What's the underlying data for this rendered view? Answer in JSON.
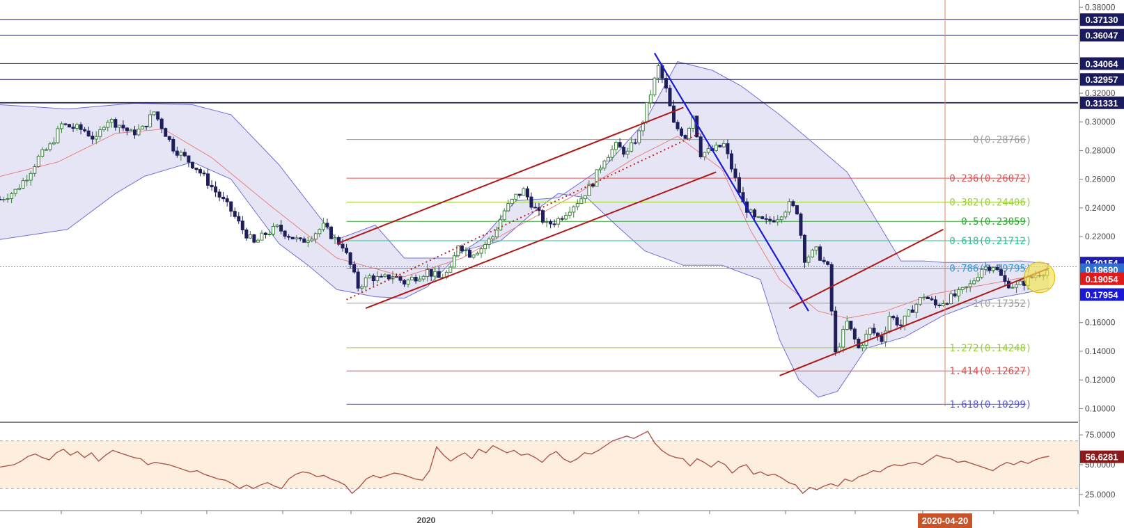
{
  "chart_data": {
    "type": "candlestick",
    "price_axis": {
      "ylim": [
        0.09,
        0.385
      ],
      "ticks": [
        "0.38000",
        "0.32000",
        "0.30000",
        "0.28000",
        "0.26000",
        "0.24000",
        "0.22000",
        "0.16000",
        "0.14000",
        "0.12000",
        "0.10000"
      ]
    },
    "x_axis": {
      "labels": [
        {
          "text": "2020",
          "at": 0.38
        }
      ],
      "cursor_label": "2020-04-20"
    },
    "horizontal_levels": [
      {
        "value": 0.3713,
        "label": "0.37130",
        "color": "#1a1a5e"
      },
      {
        "value": 0.36047,
        "label": "0.36047",
        "color": "#1a1a5e"
      },
      {
        "value": 0.34064,
        "label": "0.34064",
        "color": "#1a1a5e"
      },
      {
        "value": 0.32957,
        "label": "0.32957",
        "color": "#1a1a5e"
      },
      {
        "value": 0.31331,
        "label": "0.31331",
        "color": "#1a1a5e"
      }
    ],
    "price_tags": [
      {
        "value": 0.20154,
        "label": "0.20154",
        "color": "#1f1fb4"
      },
      {
        "value": 0.1969,
        "label": "0.19690",
        "color": "#2f6fd0"
      },
      {
        "value": 0.19054,
        "label": "0.19054",
        "color": "#e01b1b"
      },
      {
        "value": 0.17954,
        "label": "0.17954",
        "color": "#1a1ad6"
      }
    ],
    "fib_levels": [
      {
        "ratio": "0",
        "value": 0.28766,
        "label": "0(0.28766)",
        "color": "#9e9e9e"
      },
      {
        "ratio": "0.236",
        "value": 0.26072,
        "label": "0.236(0.26072)",
        "color": "#e05252"
      },
      {
        "ratio": "0.382",
        "value": 0.24406,
        "label": "0.382(0.24406)",
        "color": "#9bcf3a"
      },
      {
        "ratio": "0.5",
        "value": 0.23059,
        "label": "0.5(0.23059)",
        "color": "#2eaa2e"
      },
      {
        "ratio": "0.618",
        "value": 0.21712,
        "label": "0.618(0.21712)",
        "color": "#2ebf8e"
      },
      {
        "ratio": "0.786",
        "value": 0.19795,
        "label": "0.786(0.19795)",
        "color": "#2e9bd6"
      },
      {
        "ratio": "1",
        "value": 0.17352,
        "label": "1(0.17352)",
        "color": "#9e9e9e"
      },
      {
        "ratio": "1.272",
        "value": 0.14248,
        "label": "1.272(0.14248)",
        "color": "#9bcf3a"
      },
      {
        "ratio": "1.414",
        "value": 0.12627,
        "label": "1.414(0.12627)",
        "color": "#e05252"
      },
      {
        "ratio": "1.618",
        "value": 0.10299,
        "label": "1.618(0.10299)",
        "color": "#5858d6"
      }
    ],
    "rsi": {
      "ylim": [
        15,
        85
      ],
      "ticks": [
        "75.0000",
        "50.0000",
        "25.0000"
      ],
      "last": 56.6281,
      "last_label": "56.6281",
      "band": [
        30,
        70
      ],
      "values": [
        48,
        49,
        50,
        53,
        57,
        59,
        56,
        54,
        60,
        63,
        58,
        61,
        56,
        60,
        53,
        58,
        62,
        60,
        58,
        56,
        55,
        50,
        52,
        51,
        50,
        48,
        46,
        44,
        45,
        42,
        40,
        38,
        37,
        34,
        30,
        33,
        30,
        33,
        35,
        32,
        30,
        38,
        42,
        44,
        43,
        40,
        41,
        38,
        36,
        33,
        26,
        31,
        38,
        41,
        39,
        41,
        43,
        42,
        40,
        38,
        37,
        45,
        65,
        58,
        53,
        57,
        60,
        55,
        63,
        60,
        66,
        63,
        60,
        62,
        58,
        59,
        56,
        52,
        58,
        61,
        55,
        52,
        55,
        60,
        59,
        62,
        66,
        70,
        72,
        74,
        72,
        75,
        78,
        68,
        62,
        58,
        56,
        55,
        49,
        55,
        52,
        48,
        53,
        50,
        43,
        48,
        50,
        42,
        44,
        41,
        42,
        39,
        35,
        33,
        26,
        31,
        29,
        32,
        34,
        32,
        38,
        36,
        40,
        42,
        45,
        44,
        48,
        50,
        49,
        51,
        52,
        50,
        54,
        58,
        56,
        55,
        52,
        53,
        51,
        49,
        47,
        45,
        49,
        52,
        50,
        53,
        51,
        54,
        56,
        57
      ]
    },
    "series": {
      "bb_upper": [
        [
          0,
          0.312
        ],
        [
          35,
          0.309
        ],
        [
          70,
          0.313
        ],
        [
          100,
          0.312
        ],
        [
          120,
          0.305
        ],
        [
          145,
          0.27
        ],
        [
          175,
          0.218
        ],
        [
          195,
          0.228
        ],
        [
          210,
          0.205
        ],
        [
          235,
          0.205
        ],
        [
          250,
          0.218
        ],
        [
          268,
          0.245
        ],
        [
          290,
          0.247
        ],
        [
          315,
          0.27
        ],
        [
          335,
          0.3
        ],
        [
          352,
          0.342
        ],
        [
          370,
          0.336
        ],
        [
          385,
          0.325
        ],
        [
          405,
          0.305
        ],
        [
          420,
          0.288
        ],
        [
          440,
          0.265
        ],
        [
          455,
          0.232
        ],
        [
          468,
          0.203
        ],
        [
          480,
          0.203
        ],
        [
          490,
          0.202
        ],
        [
          510,
          0.202
        ],
        [
          530,
          0.203
        ],
        [
          545,
          0.201
        ]
      ],
      "bb_lower": [
        [
          0,
          0.218
        ],
        [
          35,
          0.225
        ],
        [
          60,
          0.25
        ],
        [
          75,
          0.262
        ],
        [
          100,
          0.272
        ],
        [
          120,
          0.26
        ],
        [
          145,
          0.215
        ],
        [
          160,
          0.2
        ],
        [
          175,
          0.183
        ],
        [
          195,
          0.178
        ],
        [
          210,
          0.177
        ],
        [
          222,
          0.185
        ],
        [
          240,
          0.21
        ],
        [
          260,
          0.217
        ],
        [
          278,
          0.238
        ],
        [
          290,
          0.25
        ],
        [
          305,
          0.247
        ],
        [
          320,
          0.228
        ],
        [
          335,
          0.21
        ],
        [
          355,
          0.2
        ],
        [
          375,
          0.2
        ],
        [
          395,
          0.19
        ],
        [
          405,
          0.148
        ],
        [
          415,
          0.12
        ],
        [
          425,
          0.108
        ],
        [
          435,
          0.112
        ],
        [
          450,
          0.142
        ],
        [
          470,
          0.15
        ],
        [
          490,
          0.165
        ],
        [
          510,
          0.175
        ],
        [
          530,
          0.18
        ],
        [
          545,
          0.184
        ]
      ],
      "bb_mid": [
        [
          0,
          0.262
        ],
        [
          30,
          0.272
        ],
        [
          60,
          0.292
        ],
        [
          85,
          0.295
        ],
        [
          110,
          0.275
        ],
        [
          140,
          0.242
        ],
        [
          175,
          0.205
        ],
        [
          210,
          0.192
        ],
        [
          240,
          0.205
        ],
        [
          270,
          0.228
        ],
        [
          300,
          0.25
        ],
        [
          330,
          0.275
        ],
        [
          352,
          0.29
        ],
        [
          375,
          0.267
        ],
        [
          390,
          0.224
        ],
        [
          405,
          0.19
        ],
        [
          425,
          0.168
        ],
        [
          440,
          0.163
        ],
        [
          460,
          0.168
        ],
        [
          485,
          0.18
        ],
        [
          510,
          0.186
        ],
        [
          530,
          0.191
        ],
        [
          545,
          0.194
        ]
      ],
      "close": [
        [
          0,
          0.246
        ],
        [
          8,
          0.252
        ],
        [
          14,
          0.262
        ],
        [
          20,
          0.275
        ],
        [
          26,
          0.283
        ],
        [
          32,
          0.298
        ],
        [
          38,
          0.296
        ],
        [
          44,
          0.294
        ],
        [
          50,
          0.287
        ],
        [
          55,
          0.302
        ],
        [
          62,
          0.298
        ],
        [
          68,
          0.292
        ],
        [
          74,
          0.295
        ],
        [
          80,
          0.307
        ],
        [
          84,
          0.297
        ],
        [
          90,
          0.282
        ],
        [
          96,
          0.275
        ],
        [
          102,
          0.268
        ],
        [
          108,
          0.258
        ],
        [
          114,
          0.248
        ],
        [
          120,
          0.238
        ],
        [
          126,
          0.225
        ],
        [
          132,
          0.215
        ],
        [
          138,
          0.222
        ],
        [
          144,
          0.226
        ],
        [
          150,
          0.221
        ],
        [
          156,
          0.216
        ],
        [
          162,
          0.221
        ],
        [
          168,
          0.227
        ],
        [
          174,
          0.218
        ],
        [
          178,
          0.214
        ],
        [
          182,
          0.2
        ],
        [
          186,
          0.185
        ],
        [
          192,
          0.192
        ],
        [
          198,
          0.19
        ],
        [
          204,
          0.193
        ],
        [
          210,
          0.188
        ],
        [
          216,
          0.192
        ],
        [
          222,
          0.196
        ],
        [
          228,
          0.191
        ],
        [
          234,
          0.196
        ],
        [
          238,
          0.215
        ],
        [
          244,
          0.208
        ],
        [
          250,
          0.212
        ],
        [
          256,
          0.22
        ],
        [
          262,
          0.238
        ],
        [
          268,
          0.248
        ],
        [
          272,
          0.252
        ],
        [
          278,
          0.239
        ],
        [
          284,
          0.228
        ],
        [
          290,
          0.232
        ],
        [
          296,
          0.24
        ],
        [
          302,
          0.247
        ],
        [
          308,
          0.258
        ],
        [
          314,
          0.275
        ],
        [
          320,
          0.283
        ],
        [
          326,
          0.278
        ],
        [
          332,
          0.292
        ],
        [
          338,
          0.32
        ],
        [
          342,
          0.338
        ],
        [
          346,
          0.322
        ],
        [
          350,
          0.298
        ],
        [
          356,
          0.29
        ],
        [
          360,
          0.305
        ],
        [
          364,
          0.278
        ],
        [
          370,
          0.28
        ],
        [
          376,
          0.284
        ],
        [
          380,
          0.268
        ],
        [
          386,
          0.243
        ],
        [
          392,
          0.232
        ],
        [
          398,
          0.23
        ],
        [
          404,
          0.234
        ],
        [
          410,
          0.242
        ],
        [
          414,
          0.238
        ],
        [
          418,
          0.205
        ],
        [
          424,
          0.21
        ],
        [
          430,
          0.198
        ],
        [
          434,
          0.138
        ],
        [
          440,
          0.16
        ],
        [
          446,
          0.142
        ],
        [
          452,
          0.155
        ],
        [
          458,
          0.148
        ],
        [
          462,
          0.165
        ],
        [
          468,
          0.158
        ],
        [
          474,
          0.17
        ],
        [
          480,
          0.179
        ],
        [
          486,
          0.172
        ],
        [
          492,
          0.176
        ],
        [
          498,
          0.18
        ],
        [
          504,
          0.186
        ],
        [
          510,
          0.198
        ],
        [
          516,
          0.2
        ],
        [
          522,
          0.188
        ],
        [
          528,
          0.185
        ],
        [
          534,
          0.19
        ],
        [
          540,
          0.195
        ],
        [
          545,
          0.197
        ]
      ]
    },
    "trend_lines": {
      "red_channel_1_upper": [
        [
          175,
          0.215
        ],
        [
          355,
          0.31
        ]
      ],
      "red_channel_1_lower": [
        [
          190,
          0.17
        ],
        [
          372,
          0.265
        ]
      ],
      "red_channel_1_mid": [
        [
          180,
          0.176
        ],
        [
          365,
          0.293
        ]
      ],
      "blue_down": [
        [
          340,
          0.348
        ],
        [
          420,
          0.168
        ]
      ],
      "red_channel_2_upper": [
        [
          410,
          0.17
        ],
        [
          490,
          0.225
        ]
      ],
      "red_channel_2_lower": [
        [
          405,
          0.123
        ],
        [
          545,
          0.198
        ]
      ]
    }
  }
}
